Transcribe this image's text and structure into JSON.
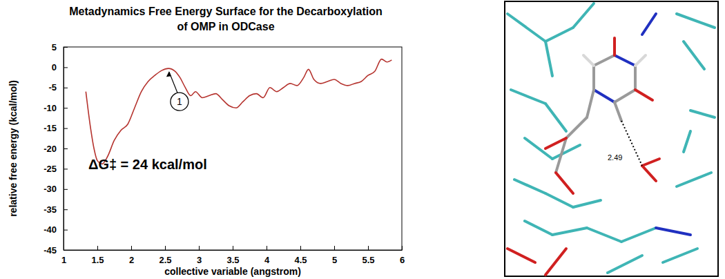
{
  "chart_data": {
    "type": "line",
    "title": [
      "Metadynamics Free Energy Surface for the Decarboxylation",
      "of OMP in ODCase"
    ],
    "x_label": "collective variable (angstrom)",
    "y_label": "relative free energy (kcal/mol)",
    "annotations": [
      "1",
      "ΔG‡ = 24 kcal/mol"
    ],
    "x": [
      1.33,
      1.4,
      1.45,
      1.5,
      1.57,
      1.65,
      1.75,
      1.85,
      1.95,
      2.05,
      2.15,
      2.25,
      2.35,
      2.45,
      2.55,
      2.65,
      2.72,
      2.8,
      2.88,
      2.95,
      3.05,
      3.15,
      3.25,
      3.35,
      3.45,
      3.55,
      3.65,
      3.75,
      3.85,
      3.95,
      4.05,
      4.15,
      4.25,
      4.35,
      4.45,
      4.55,
      4.62,
      4.7,
      4.8,
      4.9,
      5.0,
      5.1,
      5.2,
      5.3,
      5.4,
      5.5,
      5.6,
      5.7,
      5.78,
      5.85
    ],
    "values": [
      -6,
      -15,
      -20,
      -23,
      -23.8,
      -22,
      -18,
      -15.5,
      -14,
      -10,
      -6,
      -3.5,
      -2,
      -0.8,
      -0.3,
      -1,
      -2.5,
      -5,
      -7,
      -6,
      -7.5,
      -7,
      -6.5,
      -8,
      -9.5,
      -10,
      -8.5,
      -7,
      -6.5,
      -7.5,
      -5,
      -6,
      -5,
      -4,
      -4.5,
      -2.5,
      -0.5,
      -3,
      -4,
      -3.5,
      -3,
      -4,
      -4.5,
      -4,
      -3.5,
      -2,
      -1,
      2,
      1.3,
      1.8
    ],
    "color": "#b5332e",
    "xlim": [
      1,
      6
    ],
    "ylim": [
      -45,
      5
    ],
    "xticks": [
      1,
      1.5,
      2,
      2.5,
      3,
      3.5,
      4,
      4.5,
      5,
      5.5,
      6
    ],
    "yticks": [
      5,
      0,
      -5,
      -10,
      -15,
      -20,
      -25,
      -30,
      -35,
      -40,
      -45
    ],
    "grid": false
  },
  "structure_image": {
    "distance_label": "2.49"
  }
}
